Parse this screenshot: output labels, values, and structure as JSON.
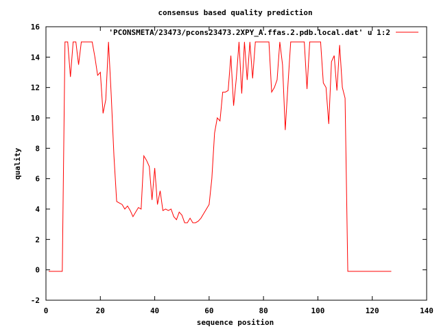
{
  "chart_data": {
    "type": "line",
    "title": "consensus based quality prediction",
    "xlabel": "sequence position",
    "ylabel": "quality",
    "xlim": [
      0,
      140
    ],
    "ylim": [
      -2,
      16
    ],
    "xticks": [
      0,
      20,
      40,
      60,
      80,
      100,
      120,
      140
    ],
    "yticks": [
      -2,
      0,
      2,
      4,
      6,
      8,
      10,
      12,
      14,
      16
    ],
    "grid": false,
    "legend_position": "top-right",
    "series": [
      {
        "name": "'PCONSMETA/23473/pcons23473.2XPY_A.ffas.2.pdb.local.dat' u 1:2",
        "color": "#ff0000",
        "x": [
          1,
          2,
          3,
          4,
          5,
          6,
          7,
          8,
          9,
          10,
          11,
          12,
          13,
          14,
          15,
          16,
          17,
          18,
          19,
          20,
          21,
          22,
          23,
          24,
          25,
          26,
          27,
          28,
          29,
          30,
          31,
          32,
          33,
          34,
          35,
          36,
          37,
          38,
          39,
          40,
          41,
          42,
          43,
          44,
          45,
          46,
          47,
          48,
          49,
          50,
          51,
          52,
          53,
          54,
          55,
          56,
          57,
          58,
          59,
          60,
          61,
          62,
          63,
          64,
          65,
          66,
          67,
          68,
          69,
          70,
          71,
          72,
          73,
          74,
          75,
          76,
          77,
          78,
          79,
          80,
          81,
          82,
          83,
          84,
          85,
          86,
          87,
          88,
          89,
          90,
          91,
          92,
          93,
          94,
          95,
          96,
          97,
          98,
          99,
          100,
          101,
          102,
          103,
          104,
          105,
          106,
          107,
          108,
          109,
          110,
          111,
          112,
          113,
          114,
          115,
          116,
          117,
          118,
          119,
          120,
          121,
          122,
          123,
          124,
          125,
          126,
          127
        ],
        "y": [
          -0.1,
          -0.1,
          -0.1,
          -0.1,
          -0.1,
          -0.1,
          15,
          15,
          12.7,
          15,
          15,
          13.5,
          15,
          15,
          15,
          15,
          15,
          14,
          12.8,
          13,
          10.3,
          11.2,
          15,
          11.5,
          7.5,
          4.5,
          4.4,
          4.3,
          4.0,
          4.2,
          3.9,
          3.5,
          3.8,
          4.1,
          4.0,
          7.5,
          7.2,
          6.8,
          4.6,
          6.7,
          4.3,
          5.2,
          3.9,
          4.0,
          3.9,
          4.0,
          3.5,
          3.3,
          3.8,
          3.6,
          3.1,
          3.1,
          3.4,
          3.1,
          3.1,
          3.2,
          3.4,
          3.7,
          4.0,
          4.3,
          6.0,
          9.0,
          10.0,
          9.8,
          11.7,
          11.7,
          11.8,
          14.1,
          10.8,
          12.6,
          15,
          11.6,
          15,
          12.5,
          15,
          12.6,
          15,
          15,
          15,
          15,
          15,
          15,
          11.7,
          12.0,
          12.5,
          15,
          13.5,
          9.2,
          12.2,
          15,
          15,
          15,
          15,
          15,
          15,
          11.9,
          15,
          15,
          15,
          15,
          15,
          12.3,
          12.0,
          9.6,
          13.7,
          14.1,
          11.8,
          14.8,
          12.0,
          11.3,
          -0.1,
          -0.1,
          -0.1,
          -0.1,
          -0.1,
          -0.1,
          -0.1,
          -0.1,
          -0.1,
          -0.1,
          -0.1,
          -0.1,
          -0.1,
          -0.1,
          -0.1,
          -0.1,
          -0.1
        ]
      }
    ]
  }
}
